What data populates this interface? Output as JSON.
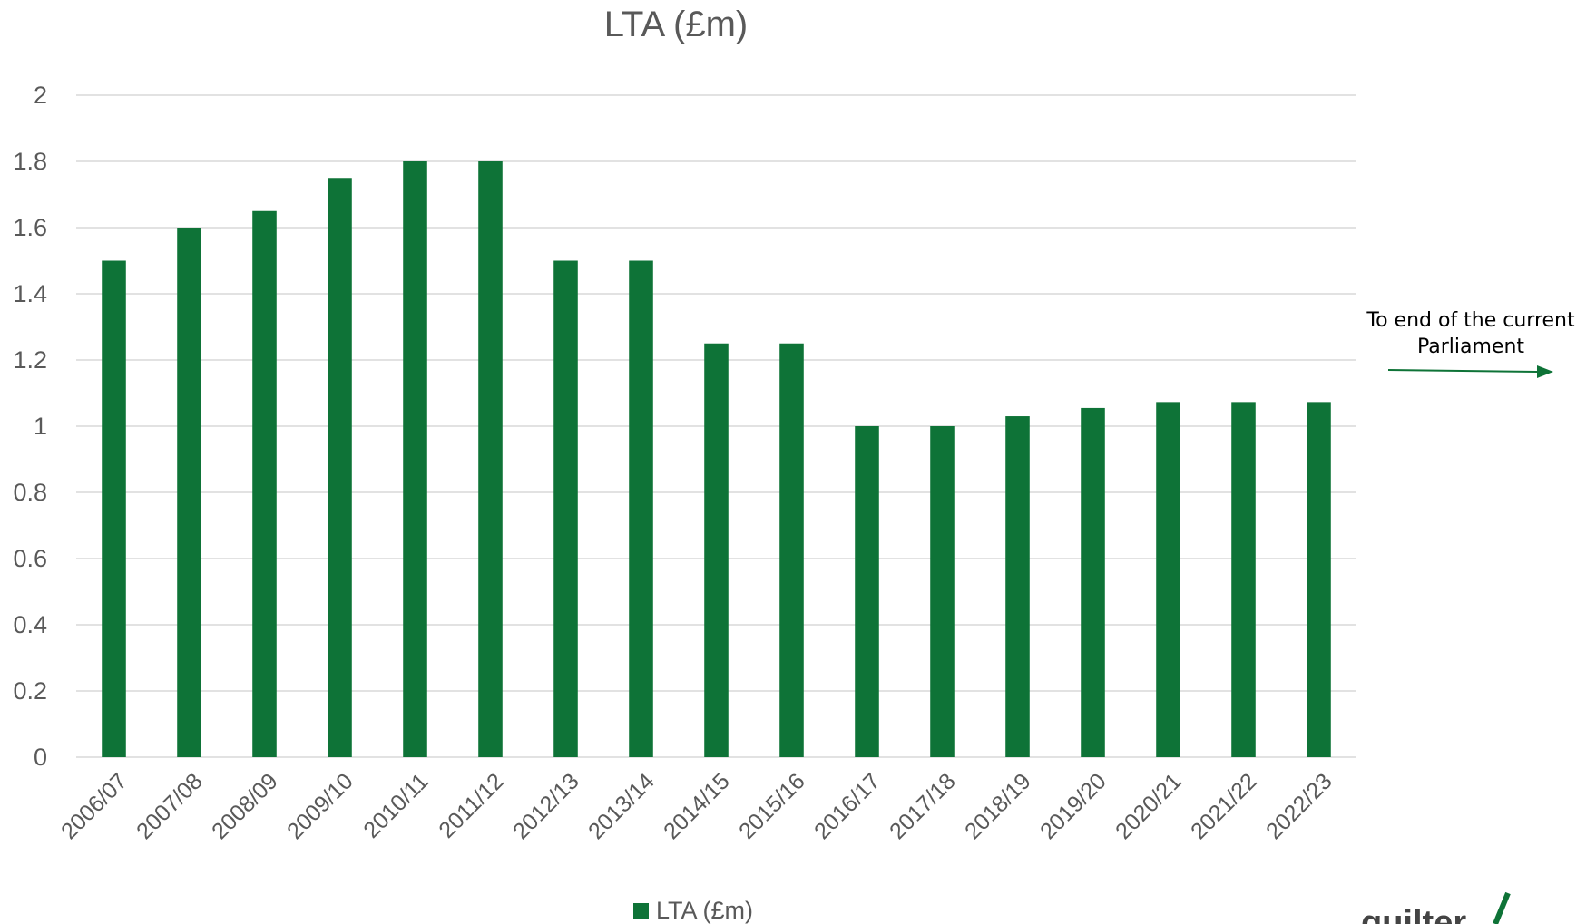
{
  "chart_data": {
    "type": "bar",
    "title": "LTA (£m)",
    "categories": [
      "2006/07",
      "2007/08",
      "2008/09",
      "2009/10",
      "2010/11",
      "2011/12",
      "2012/13",
      "2013/14",
      "2014/15",
      "2015/16",
      "2016/17",
      "2017/18",
      "2018/19",
      "2019/20",
      "2020/21",
      "2021/22",
      "2022/23"
    ],
    "series": [
      {
        "name": "LTA (£m)",
        "values": [
          1.5,
          1.6,
          1.65,
          1.75,
          1.8,
          1.8,
          1.5,
          1.5,
          1.25,
          1.25,
          1.0,
          1.0,
          1.03,
          1.055,
          1.073,
          1.073,
          1.073
        ]
      }
    ],
    "yticks": [
      "0",
      "0.2",
      "0.4",
      "0.6",
      "0.8",
      "1",
      "1.2",
      "1.4",
      "1.6",
      "1.8",
      "2"
    ],
    "ylim": [
      0,
      2
    ],
    "grid": true,
    "legend_position": "bottom",
    "bar_color": "#0e7337",
    "annotation": {
      "line1": "To end of the current",
      "line2": "Parliament"
    },
    "arrow_color": "#0e7337"
  },
  "logo": {
    "text": "quilter"
  }
}
